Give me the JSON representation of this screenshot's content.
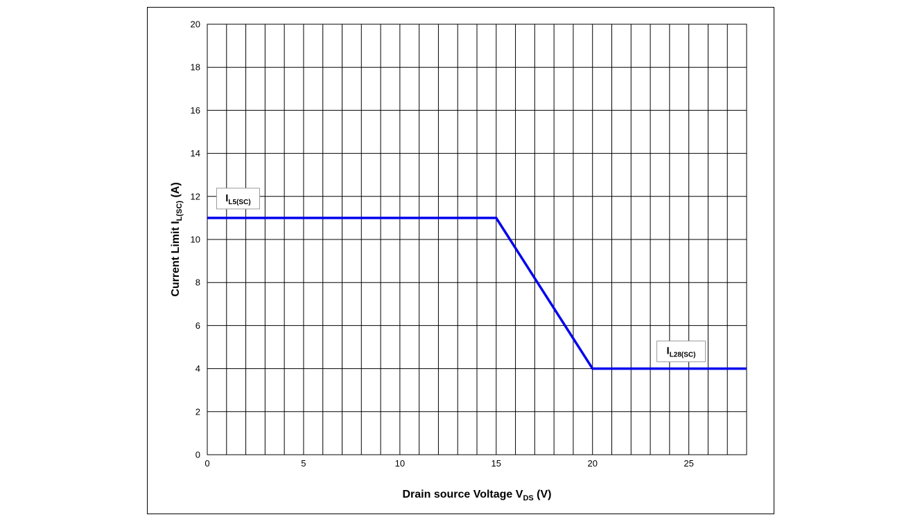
{
  "chart_data": {
    "type": "line",
    "xlabel": {
      "main": "Drain source Voltage V",
      "sub": "DS",
      "unit": " (V)"
    },
    "ylabel": {
      "main": "Current Limit I",
      "sub": "L(SC)",
      "unit": " (A)"
    },
    "xlim": [
      0,
      28
    ],
    "ylim": [
      0,
      20
    ],
    "x_ticks": [
      0,
      5,
      10,
      15,
      20,
      25
    ],
    "y_ticks": [
      0,
      2,
      4,
      6,
      8,
      10,
      12,
      14,
      16,
      18,
      20
    ],
    "grid": true,
    "x_minor_step": 1,
    "series": [
      {
        "color": "#0000ee",
        "x": [
          0,
          15,
          20,
          28
        ],
        "y": [
          11,
          11,
          4,
          4
        ]
      }
    ],
    "annotations": [
      {
        "main": "I",
        "sub": "L5(SC)",
        "x": 1.6,
        "y": 11.9
      },
      {
        "main": "I",
        "sub": "L28(SC)",
        "x": 24.6,
        "y": 4.8
      }
    ]
  }
}
